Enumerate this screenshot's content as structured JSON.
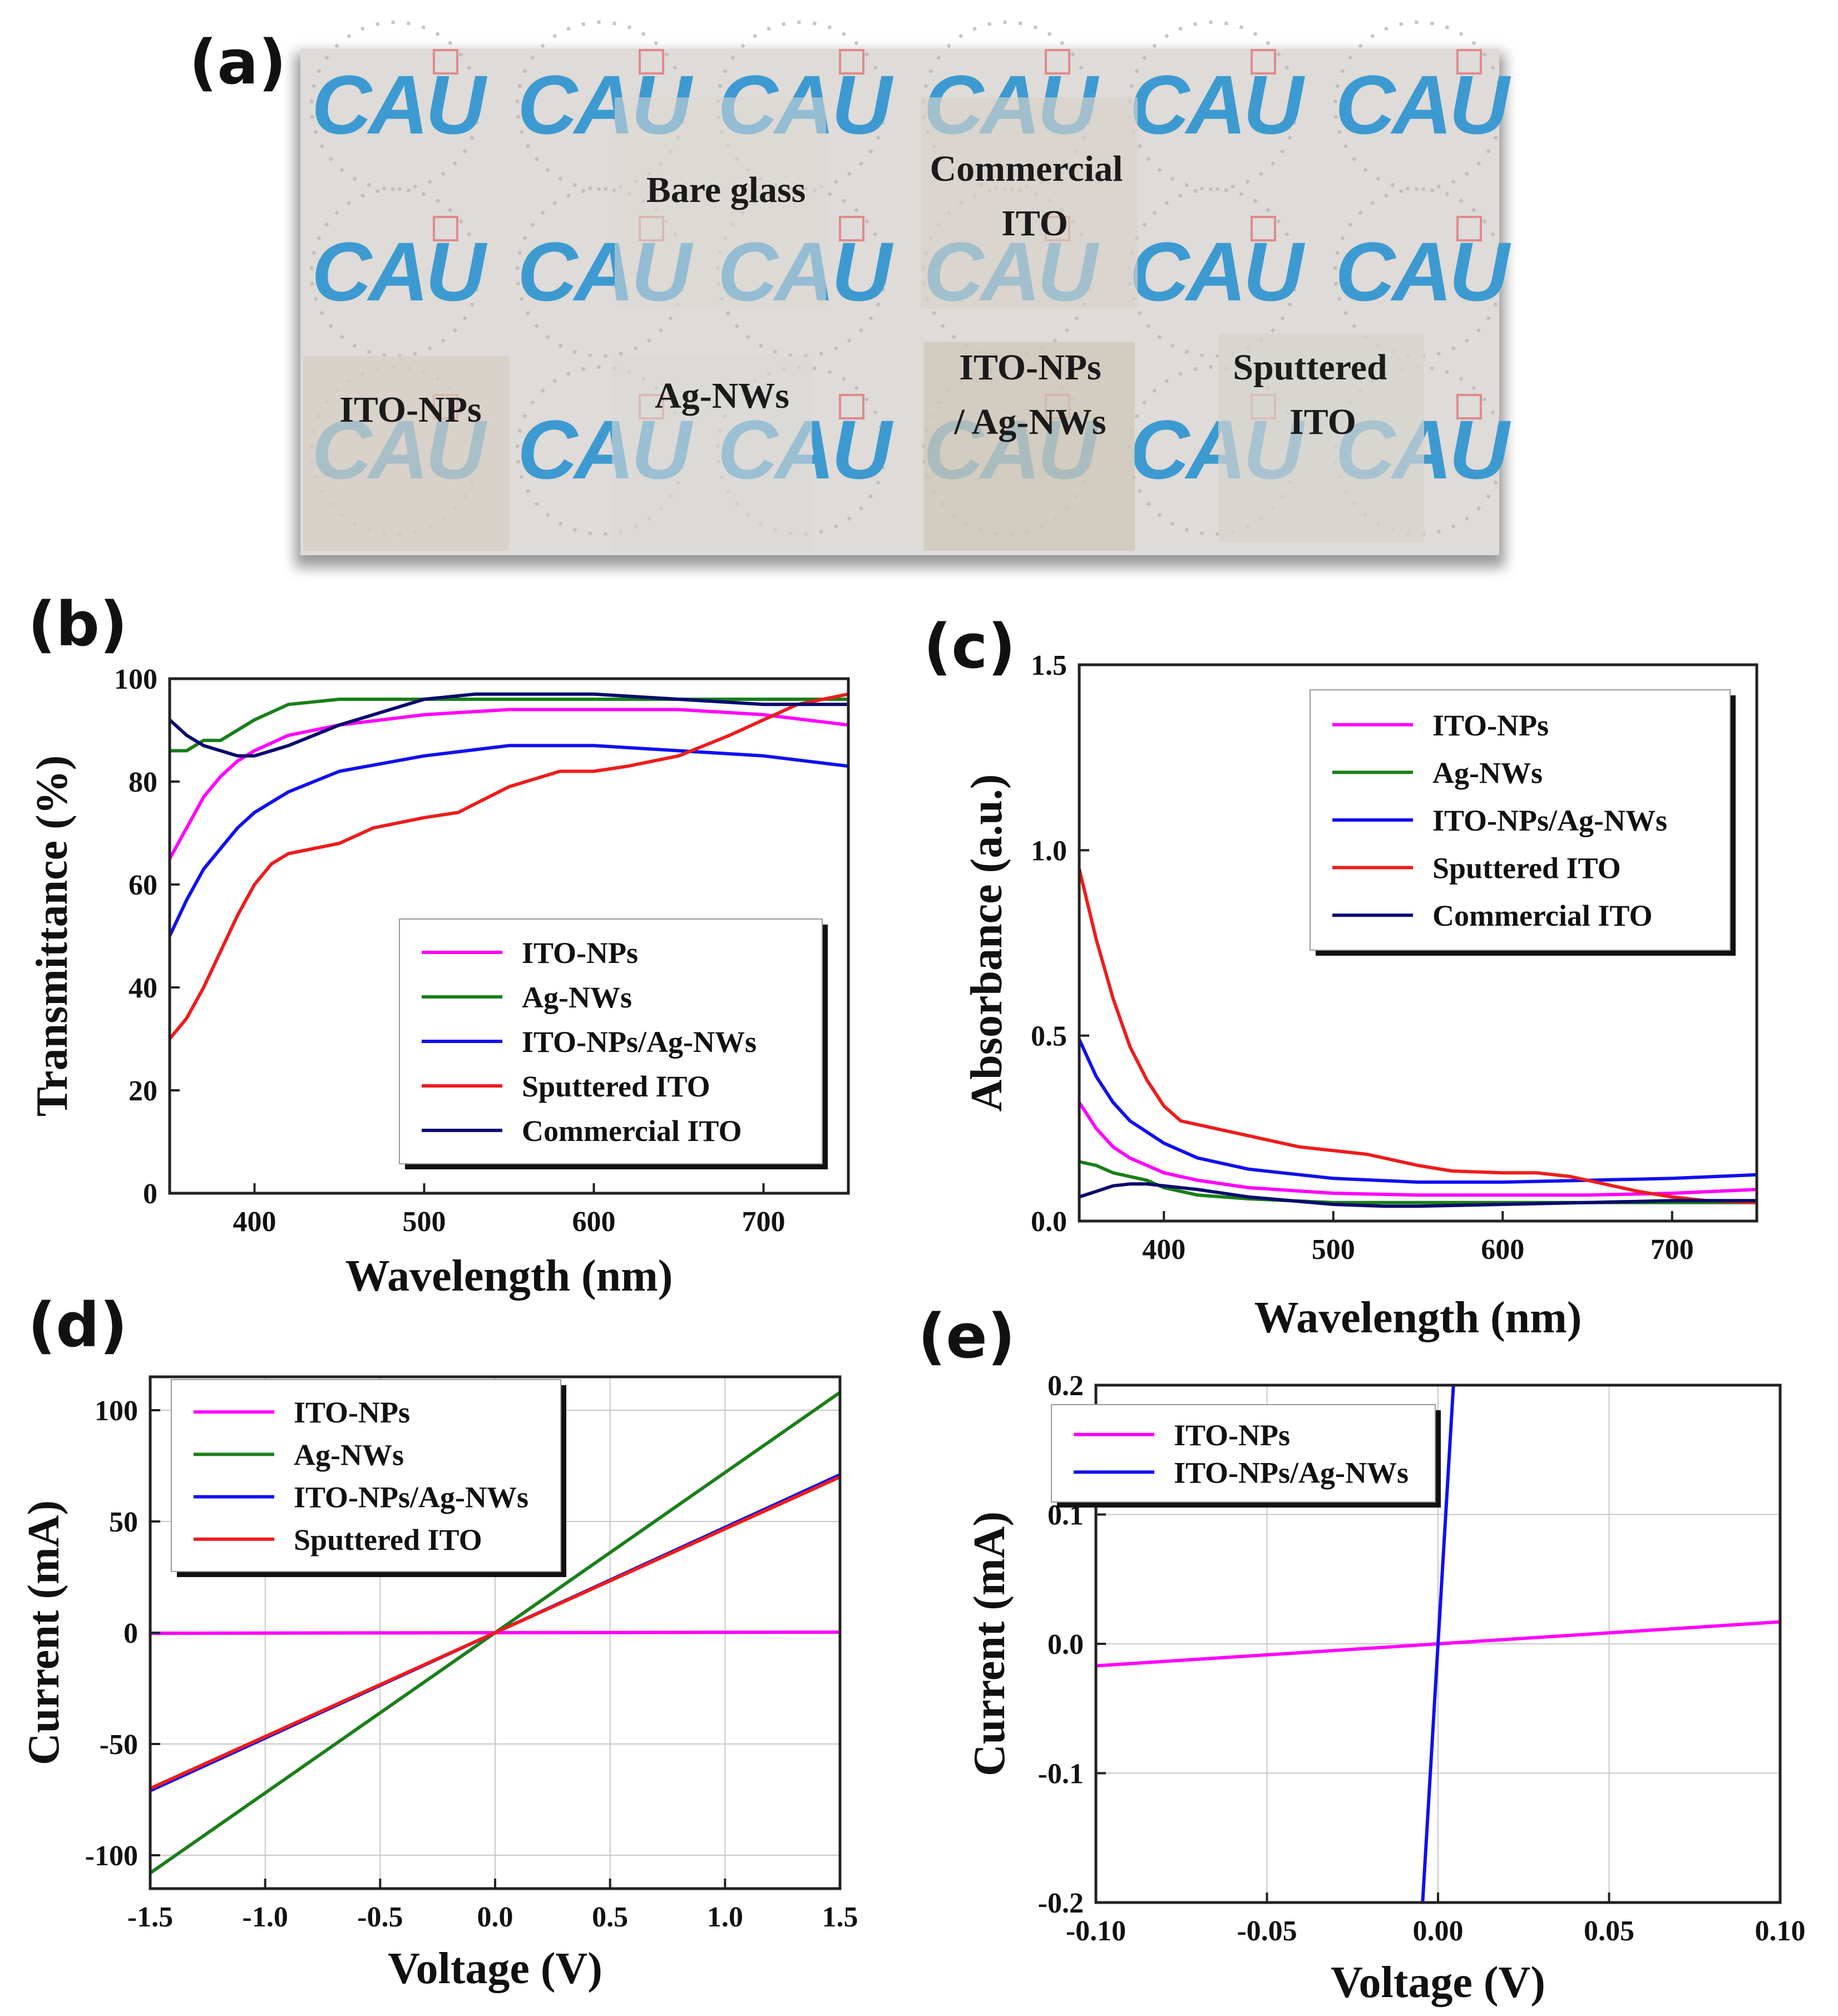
{
  "panel_letters": {
    "a": "(a)",
    "b": "(b)",
    "c": "(c)",
    "d": "(d)",
    "e": "(e)"
  },
  "photo": {
    "logo_text": "CAU",
    "labels": {
      "bare_glass": "Bare glass",
      "commercial_line1": "Commercial",
      "commercial_line2": "ITO",
      "ito_nps": "ITO-NPs",
      "ag_nws": "Ag-NWs",
      "hybrid_line1": "ITO-NPs",
      "hybrid_line2": "/ Ag-NWs",
      "sputtered_line1": "Sputtered",
      "sputtered_line2": "ITO"
    }
  },
  "colors": {
    "ITO-NPs": "#ff00ff",
    "Ag-NWs": "#1a7f1a",
    "ITO-NPs/Ag-NWs": "#1010f0",
    "Sputtered ITO": "#ee1c1c",
    "Commercial ITO": "#0a0a6e"
  },
  "chart_data": [
    {
      "id": "b",
      "type": "line",
      "xlabel": "Wavelength (nm)",
      "ylabel": "Transmittance (%)",
      "xlim": [
        350,
        750
      ],
      "ylim": [
        0,
        100
      ],
      "xticks": [
        400,
        500,
        600,
        700
      ],
      "yticks": [
        0,
        20,
        40,
        60,
        80,
        100
      ],
      "grid": false,
      "legend_position": "bottom-right",
      "series": [
        {
          "name": "ITO-NPs",
          "x": [
            350,
            360,
            370,
            380,
            390,
            400,
            420,
            450,
            500,
            550,
            600,
            650,
            700,
            750
          ],
          "y": [
            65,
            71,
            77,
            81,
            84,
            86,
            89,
            91,
            93,
            94,
            94,
            94,
            93,
            91
          ]
        },
        {
          "name": "Ag-NWs",
          "x": [
            350,
            360,
            370,
            380,
            390,
            400,
            420,
            450,
            500,
            550,
            600,
            650,
            700,
            750
          ],
          "y": [
            86,
            86,
            88,
            88,
            90,
            92,
            95,
            96,
            96,
            96,
            96,
            96,
            96,
            96
          ]
        },
        {
          "name": "ITO-NPs/Ag-NWs",
          "x": [
            350,
            360,
            370,
            380,
            390,
            400,
            420,
            450,
            500,
            550,
            600,
            650,
            700,
            750
          ],
          "y": [
            50,
            57,
            63,
            67,
            71,
            74,
            78,
            82,
            85,
            87,
            87,
            86,
            85,
            83
          ]
        },
        {
          "name": "Sputtered ITO",
          "x": [
            350,
            360,
            370,
            380,
            390,
            400,
            410,
            420,
            450,
            470,
            500,
            520,
            550,
            580,
            600,
            620,
            650,
            680,
            700,
            720,
            750
          ],
          "y": [
            30,
            34,
            40,
            47,
            54,
            60,
            64,
            66,
            68,
            71,
            73,
            74,
            79,
            82,
            82,
            83,
            85,
            89,
            92,
            95,
            97
          ]
        },
        {
          "name": "Commercial ITO",
          "x": [
            350,
            360,
            370,
            380,
            390,
            400,
            420,
            450,
            500,
            530,
            550,
            600,
            650,
            700,
            750
          ],
          "y": [
            92,
            89,
            87,
            86,
            85,
            85,
            87,
            91,
            96,
            97,
            97,
            97,
            96,
            95,
            95
          ]
        }
      ]
    },
    {
      "id": "c",
      "type": "line",
      "xlabel": "Wavelength (nm)",
      "ylabel": "Absorbance (a.u.)",
      "xlim": [
        350,
        750
      ],
      "ylim": [
        0,
        1.5
      ],
      "xticks": [
        400,
        500,
        600,
        700
      ],
      "yticks": [
        0.0,
        0.5,
        1.0,
        1.5
      ],
      "ytick_labels": [
        "0.0",
        "0.5",
        "1.0",
        "1.5"
      ],
      "grid": false,
      "legend_position": "top-right",
      "series": [
        {
          "name": "ITO-NPs",
          "x": [
            350,
            360,
            370,
            380,
            390,
            400,
            420,
            450,
            500,
            550,
            600,
            650,
            700,
            750
          ],
          "y": [
            0.32,
            0.25,
            0.2,
            0.17,
            0.15,
            0.13,
            0.11,
            0.09,
            0.075,
            0.07,
            0.07,
            0.07,
            0.075,
            0.085
          ]
        },
        {
          "name": "Ag-NWs",
          "x": [
            350,
            360,
            370,
            380,
            390,
            400,
            420,
            450,
            500,
            550,
            600,
            650,
            700,
            750
          ],
          "y": [
            0.16,
            0.15,
            0.13,
            0.12,
            0.11,
            0.09,
            0.07,
            0.06,
            0.05,
            0.05,
            0.05,
            0.05,
            0.05,
            0.05
          ]
        },
        {
          "name": "ITO-NPs/Ag-NWs",
          "x": [
            350,
            360,
            370,
            380,
            390,
            400,
            420,
            450,
            500,
            550,
            600,
            650,
            700,
            750
          ],
          "y": [
            0.49,
            0.39,
            0.32,
            0.27,
            0.24,
            0.21,
            0.17,
            0.14,
            0.115,
            0.105,
            0.105,
            0.11,
            0.115,
            0.125
          ]
        },
        {
          "name": "Sputtered ITO",
          "x": [
            350,
            360,
            370,
            380,
            390,
            400,
            410,
            420,
            450,
            480,
            500,
            520,
            550,
            570,
            600,
            620,
            640,
            660,
            680,
            700,
            720,
            750
          ],
          "y": [
            0.95,
            0.76,
            0.6,
            0.47,
            0.38,
            0.31,
            0.27,
            0.26,
            0.23,
            0.2,
            0.19,
            0.18,
            0.15,
            0.135,
            0.13,
            0.13,
            0.12,
            0.1,
            0.08,
            0.065,
            0.055,
            0.05
          ]
        },
        {
          "name": "Commercial ITO",
          "x": [
            350,
            360,
            370,
            380,
            390,
            400,
            420,
            450,
            500,
            530,
            550,
            600,
            650,
            700,
            750
          ],
          "y": [
            0.065,
            0.08,
            0.095,
            0.1,
            0.1,
            0.095,
            0.085,
            0.065,
            0.045,
            0.04,
            0.04,
            0.045,
            0.05,
            0.055,
            0.055
          ]
        }
      ]
    },
    {
      "id": "d",
      "type": "line",
      "xlabel": "Voltage (V)",
      "ylabel": "Current (mA)",
      "xlim": [
        -1.5,
        1.5
      ],
      "ylim": [
        -115,
        115
      ],
      "xticks": [
        -1.5,
        -1.0,
        -0.5,
        0.0,
        0.5,
        1.0,
        1.5
      ],
      "xtick_labels": [
        "-1.5",
        "-1.0",
        "-0.5",
        "0.0",
        "0.5",
        "1.0",
        "1.5"
      ],
      "yticks": [
        -100,
        -50,
        0,
        50,
        100
      ],
      "grid": true,
      "legend_position": "top-left",
      "series": [
        {
          "name": "ITO-NPs",
          "x": [
            -1.5,
            1.5
          ],
          "y": [
            -0.25,
            0.25
          ]
        },
        {
          "name": "Ag-NWs",
          "x": [
            -1.5,
            1.5
          ],
          "y": [
            -108,
            108
          ]
        },
        {
          "name": "ITO-NPs/Ag-NWs",
          "x": [
            -1.5,
            1.5
          ],
          "y": [
            -71,
            71
          ]
        },
        {
          "name": "Sputtered ITO",
          "x": [
            -1.5,
            1.5
          ],
          "y": [
            -70,
            70
          ]
        }
      ]
    },
    {
      "id": "e",
      "type": "line",
      "xlabel": "Voltage (V)",
      "ylabel": "Current (mA)",
      "xlim": [
        -0.1,
        0.1
      ],
      "ylim": [
        -0.2,
        0.2
      ],
      "xticks": [
        -0.1,
        -0.05,
        0.0,
        0.05,
        0.1
      ],
      "xtick_labels": [
        "-0.10",
        "-0.05",
        "0.00",
        "0.05",
        "0.10"
      ],
      "yticks": [
        -0.2,
        -0.1,
        0.0,
        0.1,
        0.2
      ],
      "ytick_labels": [
        "-0.2",
        "-0.1",
        "0.0",
        "0.1",
        "0.2"
      ],
      "grid": true,
      "legend_position": "top-left",
      "series": [
        {
          "name": "ITO-NPs",
          "x": [
            -0.1,
            0.1
          ],
          "y": [
            -0.017,
            0.017
          ]
        },
        {
          "name": "ITO-NPs/Ag-NWs",
          "x": [
            -0.0045,
            0.0045
          ],
          "y": [
            -0.2,
            0.2
          ]
        }
      ]
    }
  ]
}
